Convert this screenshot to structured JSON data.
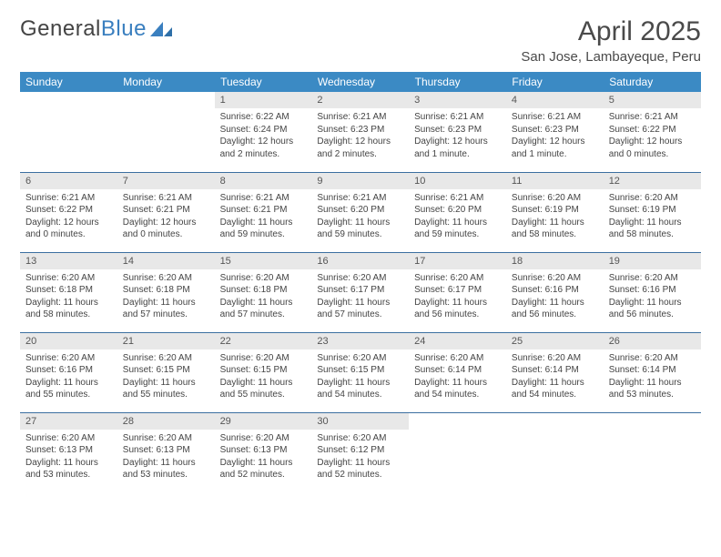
{
  "logo": {
    "text_part1": "General",
    "text_part2": "Blue"
  },
  "title": "April 2025",
  "location": "San Jose, Lambayeque, Peru",
  "colors": {
    "header_bg": "#3b8ac4",
    "header_text": "#ffffff",
    "day_num_bg": "#e8e8e8",
    "row_border": "#3b6fa0",
    "body_text": "#444444",
    "logo_blue": "#3a7fbf"
  },
  "weekdays": [
    "Sunday",
    "Monday",
    "Tuesday",
    "Wednesday",
    "Thursday",
    "Friday",
    "Saturday"
  ],
  "weeks": [
    [
      {
        "empty": true
      },
      {
        "empty": true
      },
      {
        "num": "1",
        "sunrise": "Sunrise: 6:22 AM",
        "sunset": "Sunset: 6:24 PM",
        "daylight": "Daylight: 12 hours and 2 minutes."
      },
      {
        "num": "2",
        "sunrise": "Sunrise: 6:21 AM",
        "sunset": "Sunset: 6:23 PM",
        "daylight": "Daylight: 12 hours and 2 minutes."
      },
      {
        "num": "3",
        "sunrise": "Sunrise: 6:21 AM",
        "sunset": "Sunset: 6:23 PM",
        "daylight": "Daylight: 12 hours and 1 minute."
      },
      {
        "num": "4",
        "sunrise": "Sunrise: 6:21 AM",
        "sunset": "Sunset: 6:23 PM",
        "daylight": "Daylight: 12 hours and 1 minute."
      },
      {
        "num": "5",
        "sunrise": "Sunrise: 6:21 AM",
        "sunset": "Sunset: 6:22 PM",
        "daylight": "Daylight: 12 hours and 0 minutes."
      }
    ],
    [
      {
        "num": "6",
        "sunrise": "Sunrise: 6:21 AM",
        "sunset": "Sunset: 6:22 PM",
        "daylight": "Daylight: 12 hours and 0 minutes."
      },
      {
        "num": "7",
        "sunrise": "Sunrise: 6:21 AM",
        "sunset": "Sunset: 6:21 PM",
        "daylight": "Daylight: 12 hours and 0 minutes."
      },
      {
        "num": "8",
        "sunrise": "Sunrise: 6:21 AM",
        "sunset": "Sunset: 6:21 PM",
        "daylight": "Daylight: 11 hours and 59 minutes."
      },
      {
        "num": "9",
        "sunrise": "Sunrise: 6:21 AM",
        "sunset": "Sunset: 6:20 PM",
        "daylight": "Daylight: 11 hours and 59 minutes."
      },
      {
        "num": "10",
        "sunrise": "Sunrise: 6:21 AM",
        "sunset": "Sunset: 6:20 PM",
        "daylight": "Daylight: 11 hours and 59 minutes."
      },
      {
        "num": "11",
        "sunrise": "Sunrise: 6:20 AM",
        "sunset": "Sunset: 6:19 PM",
        "daylight": "Daylight: 11 hours and 58 minutes."
      },
      {
        "num": "12",
        "sunrise": "Sunrise: 6:20 AM",
        "sunset": "Sunset: 6:19 PM",
        "daylight": "Daylight: 11 hours and 58 minutes."
      }
    ],
    [
      {
        "num": "13",
        "sunrise": "Sunrise: 6:20 AM",
        "sunset": "Sunset: 6:18 PM",
        "daylight": "Daylight: 11 hours and 58 minutes."
      },
      {
        "num": "14",
        "sunrise": "Sunrise: 6:20 AM",
        "sunset": "Sunset: 6:18 PM",
        "daylight": "Daylight: 11 hours and 57 minutes."
      },
      {
        "num": "15",
        "sunrise": "Sunrise: 6:20 AM",
        "sunset": "Sunset: 6:18 PM",
        "daylight": "Daylight: 11 hours and 57 minutes."
      },
      {
        "num": "16",
        "sunrise": "Sunrise: 6:20 AM",
        "sunset": "Sunset: 6:17 PM",
        "daylight": "Daylight: 11 hours and 57 minutes."
      },
      {
        "num": "17",
        "sunrise": "Sunrise: 6:20 AM",
        "sunset": "Sunset: 6:17 PM",
        "daylight": "Daylight: 11 hours and 56 minutes."
      },
      {
        "num": "18",
        "sunrise": "Sunrise: 6:20 AM",
        "sunset": "Sunset: 6:16 PM",
        "daylight": "Daylight: 11 hours and 56 minutes."
      },
      {
        "num": "19",
        "sunrise": "Sunrise: 6:20 AM",
        "sunset": "Sunset: 6:16 PM",
        "daylight": "Daylight: 11 hours and 56 minutes."
      }
    ],
    [
      {
        "num": "20",
        "sunrise": "Sunrise: 6:20 AM",
        "sunset": "Sunset: 6:16 PM",
        "daylight": "Daylight: 11 hours and 55 minutes."
      },
      {
        "num": "21",
        "sunrise": "Sunrise: 6:20 AM",
        "sunset": "Sunset: 6:15 PM",
        "daylight": "Daylight: 11 hours and 55 minutes."
      },
      {
        "num": "22",
        "sunrise": "Sunrise: 6:20 AM",
        "sunset": "Sunset: 6:15 PM",
        "daylight": "Daylight: 11 hours and 55 minutes."
      },
      {
        "num": "23",
        "sunrise": "Sunrise: 6:20 AM",
        "sunset": "Sunset: 6:15 PM",
        "daylight": "Daylight: 11 hours and 54 minutes."
      },
      {
        "num": "24",
        "sunrise": "Sunrise: 6:20 AM",
        "sunset": "Sunset: 6:14 PM",
        "daylight": "Daylight: 11 hours and 54 minutes."
      },
      {
        "num": "25",
        "sunrise": "Sunrise: 6:20 AM",
        "sunset": "Sunset: 6:14 PM",
        "daylight": "Daylight: 11 hours and 54 minutes."
      },
      {
        "num": "26",
        "sunrise": "Sunrise: 6:20 AM",
        "sunset": "Sunset: 6:14 PM",
        "daylight": "Daylight: 11 hours and 53 minutes."
      }
    ],
    [
      {
        "num": "27",
        "sunrise": "Sunrise: 6:20 AM",
        "sunset": "Sunset: 6:13 PM",
        "daylight": "Daylight: 11 hours and 53 minutes."
      },
      {
        "num": "28",
        "sunrise": "Sunrise: 6:20 AM",
        "sunset": "Sunset: 6:13 PM",
        "daylight": "Daylight: 11 hours and 53 minutes."
      },
      {
        "num": "29",
        "sunrise": "Sunrise: 6:20 AM",
        "sunset": "Sunset: 6:13 PM",
        "daylight": "Daylight: 11 hours and 52 minutes."
      },
      {
        "num": "30",
        "sunrise": "Sunrise: 6:20 AM",
        "sunset": "Sunset: 6:12 PM",
        "daylight": "Daylight: 11 hours and 52 minutes."
      },
      {
        "empty": true
      },
      {
        "empty": true
      },
      {
        "empty": true
      }
    ]
  ]
}
